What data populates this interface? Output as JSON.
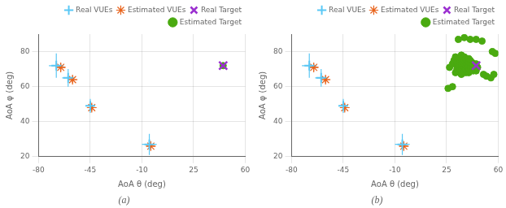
{
  "chart_data": [
    {
      "type": "scatter",
      "title": "(a)",
      "xlabel": "AoA θ (deg)",
      "ylabel": "AoA φ (deg)",
      "xlim": [
        -80,
        60
      ],
      "ylim": [
        20,
        90
      ],
      "xticks": [
        -80,
        -45,
        -10,
        25,
        60
      ],
      "yticks": [
        20,
        40,
        60,
        80
      ],
      "grid": true,
      "legend": "upper right",
      "series": [
        {
          "name": "Real VUEs",
          "color": "#5bc8f5",
          "marker": "plus",
          "x": [
            -68,
            -60,
            -45,
            -5
          ],
          "values": [
            72,
            65,
            49,
            27
          ],
          "xerr": [
            5,
            4,
            3,
            5
          ],
          "yerr": [
            7,
            5,
            4,
            6
          ]
        },
        {
          "name": "Estimated VUEs",
          "color": "#e8621a",
          "marker": "star",
          "x": [
            -65,
            -57,
            -44,
            -4
          ],
          "values": [
            71,
            64,
            48,
            26
          ],
          "xerr": [
            3,
            3,
            2,
            3
          ],
          "yerr": [
            2,
            2,
            2,
            2
          ]
        },
        {
          "name": "Real Target",
          "color": "#9b30d0",
          "marker": "x",
          "x": [
            45
          ],
          "values": [
            72
          ]
        },
        {
          "name": "Estimated Target",
          "color": "#4aaa10",
          "marker": "circle",
          "x": [
            45
          ],
          "values": [
            72
          ]
        }
      ]
    },
    {
      "type": "scatter",
      "title": "(b)",
      "xlabel": "AoA θ (deg)",
      "ylabel": "AoA φ (deg)",
      "xlim": [
        -80,
        60
      ],
      "ylim": [
        20,
        90
      ],
      "xticks": [
        -80,
        -45,
        -10,
        25,
        60
      ],
      "yticks": [
        20,
        40,
        60,
        80
      ],
      "grid": true,
      "legend": "upper right",
      "series": [
        {
          "name": "Real VUEs",
          "color": "#5bc8f5",
          "marker": "plus",
          "x": [
            -68,
            -60,
            -45,
            -5
          ],
          "values": [
            72,
            65,
            49,
            27
          ],
          "xerr": [
            5,
            4,
            3,
            5
          ],
          "yerr": [
            7,
            5,
            4,
            6
          ]
        },
        {
          "name": "Estimated VUEs",
          "color": "#e8621a",
          "marker": "star",
          "x": [
            -65,
            -57,
            -44,
            -4
          ],
          "values": [
            71,
            64,
            48,
            26
          ],
          "xerr": [
            3,
            3,
            2,
            3
          ],
          "yerr": [
            2,
            2,
            2,
            2
          ]
        },
        {
          "name": "Real Target",
          "color": "#9b30d0",
          "marker": "x",
          "x": [
            45
          ],
          "values": [
            72
          ]
        },
        {
          "name": "Estimated Target",
          "color": "#4aaa10",
          "marker": "circle",
          "x": [
            27,
            29,
            30,
            31,
            31,
            32,
            32,
            32,
            33,
            33,
            33,
            33,
            34,
            34,
            34,
            34,
            35,
            35,
            35,
            35,
            35,
            35,
            36,
            36,
            36,
            36,
            36,
            37,
            37,
            37,
            37,
            37,
            38,
            38,
            38,
            38,
            38,
            39,
            39,
            39,
            39,
            40,
            40,
            40,
            40,
            40,
            41,
            41,
            41,
            41,
            42,
            42,
            42,
            43,
            43,
            43,
            44,
            44,
            45,
            45,
            46,
            50,
            52,
            55,
            57,
            26,
            29,
            58,
            56,
            33,
            37,
            41,
            45,
            49
          ],
          "values": [
            71,
            73,
            75,
            68,
            77,
            70,
            72,
            74,
            69,
            71,
            73,
            76,
            68,
            70,
            72,
            74,
            67,
            69,
            71,
            73,
            75,
            78,
            68,
            70,
            72,
            74,
            76,
            69,
            71,
            73,
            75,
            77,
            68,
            70,
            72,
            74,
            76,
            69,
            71,
            73,
            75,
            68,
            70,
            72,
            74,
            76,
            69,
            71,
            73,
            75,
            70,
            72,
            74,
            69,
            71,
            73,
            70,
            72,
            69,
            73,
            71,
            67,
            66,
            65,
            67,
            59,
            60,
            79,
            80,
            87,
            88,
            87,
            87,
            86
          ]
        }
      ]
    }
  ]
}
